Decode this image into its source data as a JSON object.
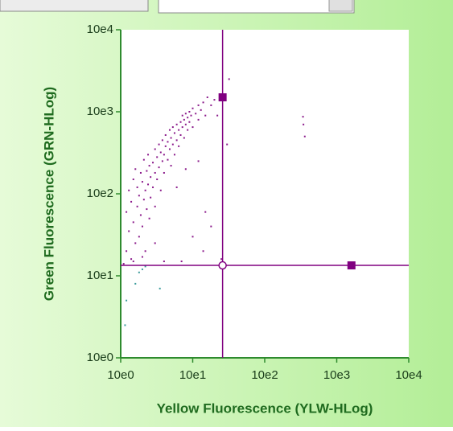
{
  "chart_data": {
    "type": "scatter",
    "x_label": "Yellow Fluorescence (YLW-HLog)",
    "y_label": "Green Fluorescence (GRN-HLog)",
    "log_x": true,
    "log_y": true,
    "xlim": [
      1,
      10000
    ],
    "ylim": [
      1,
      10000
    ],
    "xticks": [
      {
        "value": 1,
        "label": "10e0"
      },
      {
        "value": 10,
        "label": "10e1"
      },
      {
        "value": 100,
        "label": "10e2"
      },
      {
        "value": 1000,
        "label": "10e3"
      },
      {
        "value": 10000,
        "label": "10e4"
      }
    ],
    "yticks": [
      {
        "value": 1,
        "label": "10e0"
      },
      {
        "value": 10,
        "label": "10e1"
      },
      {
        "value": 100,
        "label": "10e2"
      },
      {
        "value": 1000,
        "label": "10e3"
      },
      {
        "value": 10000,
        "label": "10e4"
      }
    ],
    "quadrant": {
      "x": 26,
      "y": 13.4,
      "color": "#800080"
    },
    "handles": {
      "x": [
        26,
        1600
      ],
      "values": [
        1500,
        13.4
      ]
    },
    "series": [
      {
        "color": "#8b1a8b",
        "x": [
          1.2,
          1.2,
          1.3,
          1.3,
          1.4,
          1.4,
          1.5,
          1.5,
          1.6,
          1.6,
          1.7,
          1.7,
          1.8,
          1.8,
          1.9,
          1.9,
          2,
          2,
          2.1,
          2.1,
          2.2,
          2.2,
          2.3,
          2.3,
          2.4,
          2.4,
          2.5,
          2.5,
          2.6,
          2.6,
          2.8,
          2.8,
          3,
          3,
          3,
          3.2,
          3.2,
          3.4,
          3.4,
          3.6,
          3.6,
          3.8,
          3.8,
          4,
          4,
          4.2,
          4.2,
          4.5,
          4.5,
          4.8,
          4.8,
          5,
          5,
          5.3,
          5.3,
          5.6,
          5.6,
          6,
          6,
          6.4,
          6.4,
          6.8,
          6.8,
          7.2,
          7.2,
          7.6,
          7.6,
          8,
          8,
          8.5,
          8.5,
          9,
          9,
          9.5,
          10,
          10,
          11,
          12,
          12,
          13,
          14,
          15,
          16,
          18,
          20,
          6,
          8,
          12,
          15,
          18,
          22,
          10,
          3,
          1.1,
          1.5,
          2,
          4,
          25,
          30,
          32,
          340,
          345,
          360,
          7,
          14
        ],
        "values": [
          20,
          60,
          35,
          110,
          16,
          80,
          45,
          150,
          25,
          200,
          70,
          120,
          30,
          95,
          55,
          180,
          40,
          140,
          85,
          260,
          20,
          110,
          65,
          190,
          130,
          300,
          50,
          220,
          160,
          90,
          240,
          120,
          180,
          350,
          70,
          280,
          150,
          210,
          400,
          320,
          110,
          250,
          450,
          300,
          180,
          380,
          520,
          260,
          430,
          350,
          600,
          480,
          220,
          400,
          650,
          550,
          300,
          700,
          450,
          600,
          380,
          750,
          520,
          650,
          900,
          800,
          480,
          700,
          950,
          850,
          600,
          1000,
          750,
          900,
          1100,
          650,
          950,
          1200,
          800,
          1050,
          1300,
          900,
          1500,
          1200,
          1400,
          120,
          200,
          250,
          60,
          40,
          900,
          30,
          25,
          14,
          15,
          17,
          15,
          16,
          400,
          2500,
          870,
          700,
          500,
          15,
          20
        ]
      },
      {
        "color": "#3a9a9a",
        "x": [
          1.2,
          1.15,
          1.6,
          2,
          3.5,
          1.8,
          2.2
        ],
        "values": [
          5,
          2.5,
          8,
          12,
          7,
          11,
          13
        ]
      }
    ]
  }
}
